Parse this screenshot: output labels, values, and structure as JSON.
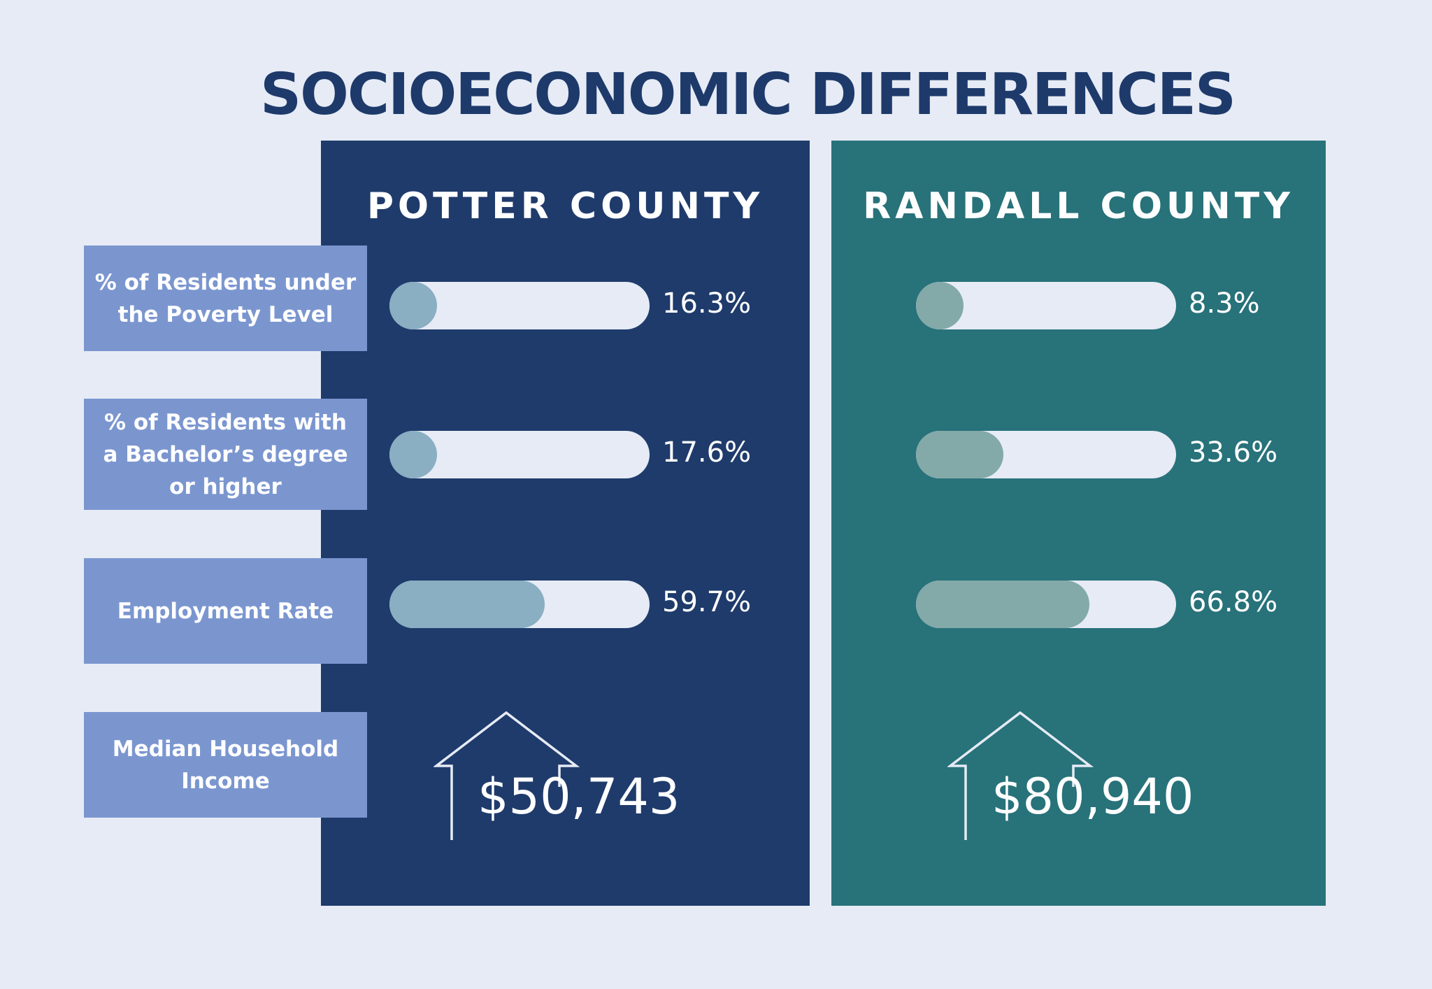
{
  "title": "SOCIOECONOMIC DIFFERENCES",
  "labels": [
    "% of Residents under the Poverty Level",
    "% of Residents with a Bachelor’s degree or higher",
    "Employment Rate",
    "Median Household Income"
  ],
  "colors": {
    "background": "#e6ebf5",
    "title": "#1e3a6b",
    "potter_panel": "#1f3b6c",
    "randall_panel": "#28727a",
    "label_box": "#7b96cf",
    "potter_fill": "#8aaec2",
    "randall_fill": "#83a9a8"
  },
  "icons": {
    "income": "house-icon"
  },
  "chart_data": {
    "type": "bar",
    "categories": [
      "% of Residents under the Poverty Level",
      "% of Residents with a Bachelor’s degree or higher",
      "Employment Rate"
    ],
    "ylim": [
      0,
      100
    ],
    "series": [
      {
        "name": "POTTER COUNTY",
        "values": [
          16.3,
          17.6,
          59.7
        ],
        "labels": [
          "16.3%",
          "17.6%",
          "59.7%"
        ],
        "income": "$50,743"
      },
      {
        "name": "RANDALL COUNTY",
        "values": [
          8.3,
          33.6,
          66.8
        ],
        "labels": [
          "8.3%",
          "33.6%",
          "66.8%"
        ],
        "income": "$80,940"
      }
    ]
  }
}
